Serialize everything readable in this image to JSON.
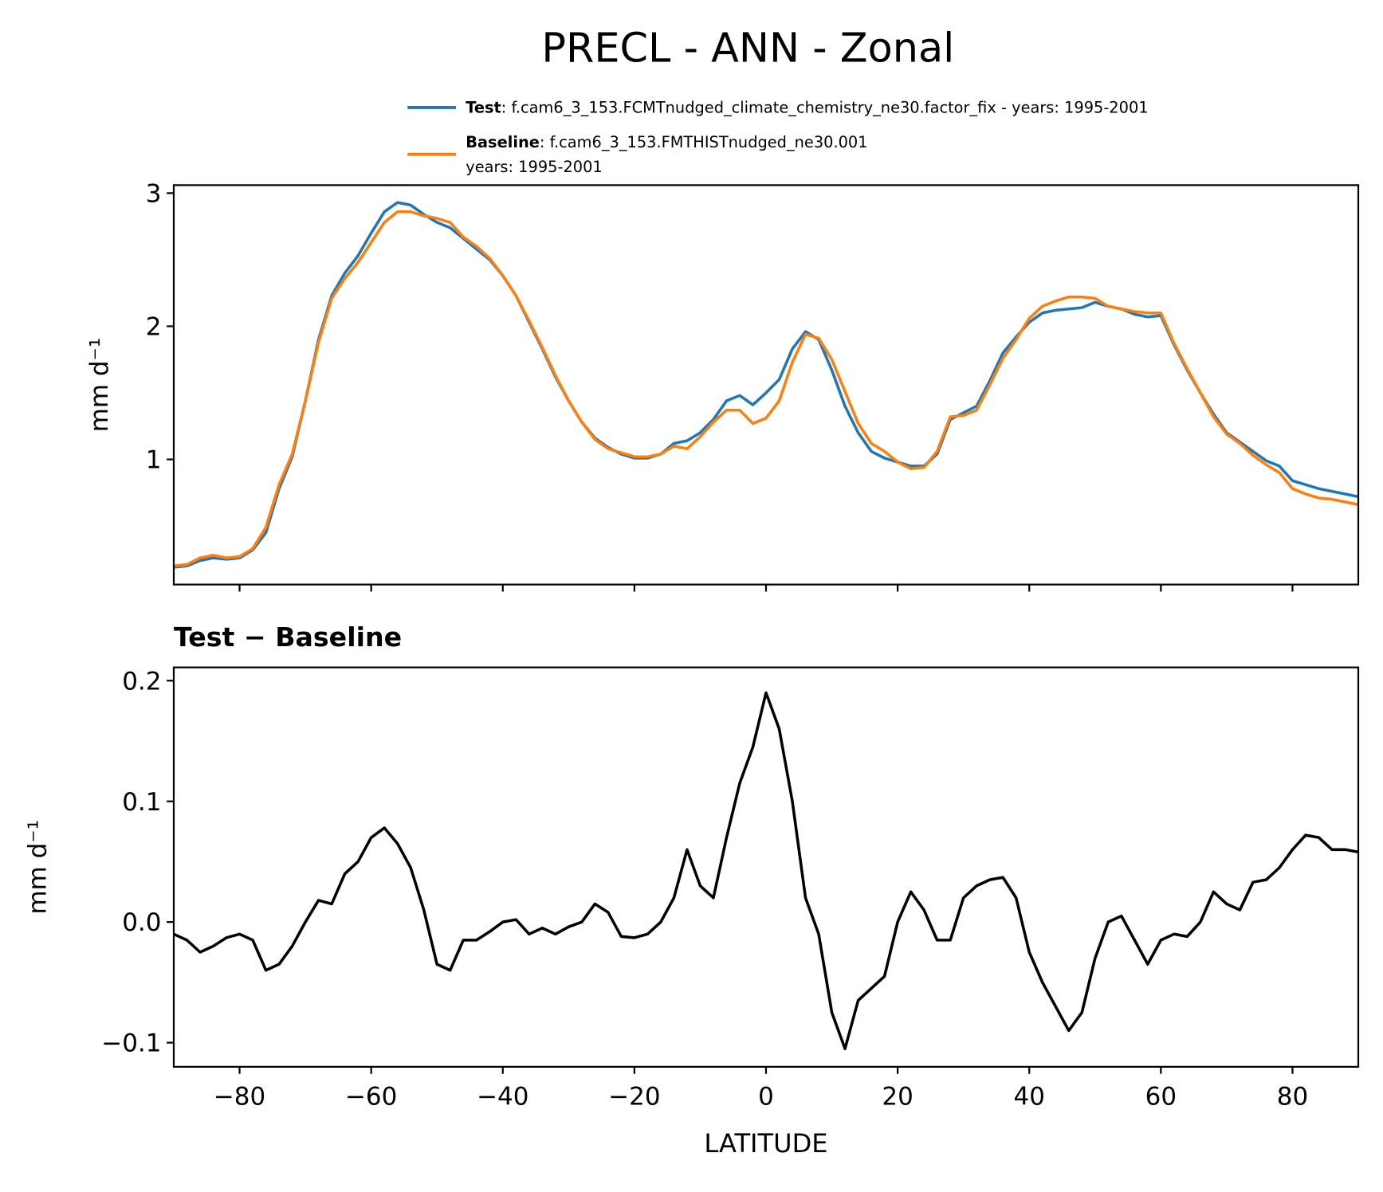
{
  "title": "PRECL - ANN - Zonal",
  "chart_data": [
    {
      "type": "line",
      "ylabel": "mm d⁻¹",
      "x": [
        -90,
        -88,
        -86,
        -84,
        -82,
        -80,
        -78,
        -76,
        -74,
        -72,
        -70,
        -68,
        -66,
        -64,
        -62,
        -60,
        -58,
        -56,
        -54,
        -52,
        -50,
        -48,
        -46,
        -44,
        -42,
        -40,
        -38,
        -36,
        -34,
        -32,
        -30,
        -28,
        -26,
        -24,
        -22,
        -20,
        -18,
        -16,
        -14,
        -12,
        -10,
        -8,
        -6,
        -4,
        -2,
        0,
        2,
        4,
        6,
        8,
        10,
        12,
        14,
        16,
        18,
        20,
        22,
        24,
        26,
        28,
        30,
        32,
        34,
        36,
        38,
        40,
        42,
        44,
        46,
        48,
        50,
        52,
        54,
        56,
        58,
        60,
        62,
        64,
        66,
        68,
        70,
        72,
        74,
        76,
        78,
        80,
        82,
        84,
        86,
        88,
        90
      ],
      "series": [
        {
          "name": "Test",
          "description": [
            ": f.cam6_3_153.FCMTnudged_climate_chemistry_ne30.factor_fix - years: 1995-2001"
          ],
          "color": "#1f77b4",
          "values": [
            0.19,
            0.2,
            0.24,
            0.26,
            0.25,
            0.26,
            0.32,
            0.45,
            0.78,
            1.02,
            1.44,
            1.9,
            2.23,
            2.4,
            2.53,
            2.7,
            2.86,
            2.93,
            2.91,
            2.84,
            2.78,
            2.74,
            2.66,
            2.58,
            2.5,
            2.38,
            2.23,
            2.03,
            1.83,
            1.62,
            1.44,
            1.28,
            1.16,
            1.09,
            1.04,
            1.01,
            1.01,
            1.04,
            1.12,
            1.14,
            1.2,
            1.3,
            1.44,
            1.48,
            1.41,
            1.5,
            1.6,
            1.83,
            1.96,
            1.9,
            1.67,
            1.4,
            1.2,
            1.06,
            1.01,
            0.98,
            0.95,
            0.95,
            1.04,
            1.3,
            1.35,
            1.4,
            1.59,
            1.8,
            1.92,
            2.03,
            2.1,
            2.12,
            2.13,
            2.14,
            2.18,
            2.15,
            2.13,
            2.09,
            2.07,
            2.08,
            1.86,
            1.67,
            1.5,
            1.34,
            1.2,
            1.13,
            1.06,
            0.99,
            0.95,
            0.84,
            0.81,
            0.78,
            0.76,
            0.74,
            0.72
          ]
        },
        {
          "name": "Baseline",
          "description": [
            ": f.cam6_3_153.FMTHISTnudged_ne30.001",
            "years: 1995-2001"
          ],
          "color": "#ff7f0e",
          "values": [
            0.2,
            0.21,
            0.26,
            0.28,
            0.26,
            0.27,
            0.33,
            0.49,
            0.81,
            1.04,
            1.44,
            1.88,
            2.21,
            2.36,
            2.48,
            2.63,
            2.78,
            2.86,
            2.86,
            2.83,
            2.81,
            2.78,
            2.67,
            2.6,
            2.51,
            2.38,
            2.23,
            2.04,
            1.84,
            1.63,
            1.44,
            1.28,
            1.15,
            1.08,
            1.05,
            1.02,
            1.02,
            1.04,
            1.1,
            1.08,
            1.17,
            1.28,
            1.37,
            1.37,
            1.27,
            1.31,
            1.44,
            1.73,
            1.94,
            1.91,
            1.75,
            1.51,
            1.27,
            1.12,
            1.06,
            0.98,
            0.93,
            0.94,
            1.06,
            1.32,
            1.33,
            1.37,
            1.56,
            1.76,
            1.9,
            2.06,
            2.15,
            2.19,
            2.22,
            2.22,
            2.21,
            2.15,
            2.13,
            2.11,
            2.1,
            2.1,
            1.87,
            1.68,
            1.5,
            1.32,
            1.19,
            1.12,
            1.03,
            0.96,
            0.9,
            0.78,
            0.74,
            0.71,
            0.7,
            0.68,
            0.66
          ]
        }
      ],
      "xlim": [
        -90,
        90
      ],
      "xticks": [
        -80,
        -60,
        -40,
        -20,
        0,
        20,
        40,
        60,
        80
      ],
      "ylim": [
        0.06,
        3.06
      ],
      "yticks": [
        1,
        2,
        3
      ]
    },
    {
      "type": "line",
      "title": "Test − Baseline",
      "ylabel": "mm d⁻¹",
      "xlabel": "LATITUDE",
      "color": "#000000",
      "x": [
        -90,
        -88,
        -86,
        -84,
        -82,
        -80,
        -78,
        -76,
        -74,
        -72,
        -70,
        -68,
        -66,
        -64,
        -62,
        -60,
        -58,
        -56,
        -54,
        -52,
        -50,
        -48,
        -46,
        -44,
        -42,
        -40,
        -38,
        -36,
        -34,
        -32,
        -30,
        -28,
        -26,
        -24,
        -22,
        -20,
        -18,
        -16,
        -14,
        -12,
        -10,
        -8,
        -6,
        -4,
        -2,
        0,
        2,
        4,
        6,
        8,
        10,
        12,
        14,
        16,
        18,
        20,
        22,
        24,
        26,
        28,
        30,
        32,
        34,
        36,
        38,
        40,
        42,
        44,
        46,
        48,
        50,
        52,
        54,
        56,
        58,
        60,
        62,
        64,
        66,
        68,
        70,
        72,
        74,
        76,
        78,
        80,
        82,
        84,
        86,
        88,
        90
      ],
      "values": [
        -0.01,
        -0.015,
        -0.025,
        -0.02,
        -0.013,
        -0.01,
        -0.015,
        -0.04,
        -0.035,
        -0.02,
        0.0,
        0.018,
        0.015,
        0.04,
        0.05,
        0.07,
        0.078,
        0.065,
        0.045,
        0.01,
        -0.035,
        -0.04,
        -0.015,
        -0.015,
        -0.008,
        0.0,
        0.002,
        -0.01,
        -0.005,
        -0.01,
        -0.004,
        0.0,
        0.015,
        0.008,
        -0.012,
        -0.013,
        -0.01,
        0.0,
        0.02,
        0.06,
        0.03,
        0.02,
        0.07,
        0.115,
        0.145,
        0.19,
        0.16,
        0.1,
        0.02,
        -0.01,
        -0.075,
        -0.105,
        -0.065,
        -0.055,
        -0.045,
        0.0,
        0.025,
        0.01,
        -0.015,
        -0.015,
        0.02,
        0.03,
        0.035,
        0.037,
        0.02,
        -0.025,
        -0.05,
        -0.07,
        -0.09,
        -0.075,
        -0.03,
        0.0,
        0.005,
        -0.015,
        -0.035,
        -0.015,
        -0.01,
        -0.012,
        0.0,
        0.025,
        0.015,
        0.01,
        0.033,
        0.035,
        0.045,
        0.06,
        0.072,
        0.07,
        0.06,
        0.06,
        0.058
      ],
      "xlim": [
        -90,
        90
      ],
      "xticks": [
        {
          "value": -80,
          "label": "−80"
        },
        {
          "value": -60,
          "label": "−60"
        },
        {
          "value": -40,
          "label": "−40"
        },
        {
          "value": -20,
          "label": "−20"
        },
        0,
        20,
        40,
        60,
        80
      ],
      "ylim": [
        -0.12,
        0.211
      ],
      "yticks": [
        {
          "value": -0.1,
          "label": "−0.1"
        },
        {
          "value": 0.0,
          "label": "0.0"
        },
        {
          "value": 0.1,
          "label": "0.1"
        },
        {
          "value": 0.2,
          "label": "0.2"
        }
      ]
    }
  ]
}
